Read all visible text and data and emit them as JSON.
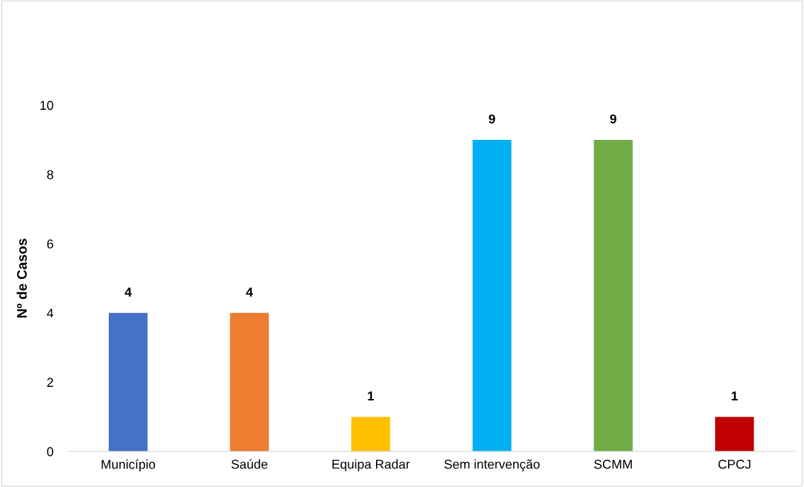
{
  "chart_data": {
    "type": "bar",
    "ylabel": "Nº de Casos",
    "categories": [
      "Município",
      "Saúde",
      "Equipa Radar",
      "Sem intervenção",
      "SCMM",
      "CPCJ"
    ],
    "values": [
      4,
      4,
      1,
      9,
      9,
      1
    ],
    "colors": [
      "#4472c4",
      "#ed7d31",
      "#ffc000",
      "#00b0f0",
      "#70ad47",
      "#c00000"
    ],
    "ylim": [
      0,
      10
    ],
    "yticks": [
      0,
      2,
      4,
      6,
      8,
      10
    ],
    "data_labels": true,
    "grid": false,
    "legend": false
  }
}
